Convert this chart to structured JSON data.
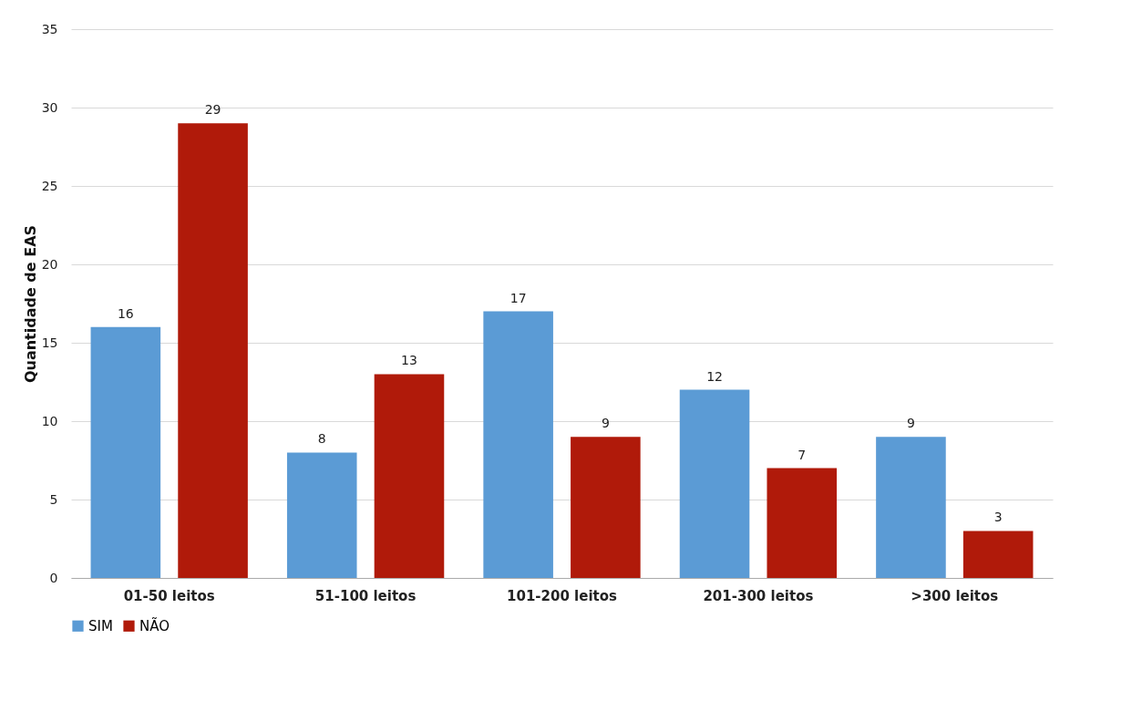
{
  "chart_data": {
    "type": "bar",
    "ylabel": "Quantidade de EAS",
    "categories": [
      "01-50 leitos",
      "51-100 leitos",
      "101-200 leitos",
      "201-300 leitos",
      ">300 leitos"
    ],
    "series": [
      {
        "name": "SIM",
        "color": "#5b9bd5",
        "values": [
          16,
          8,
          17,
          12,
          9
        ]
      },
      {
        "name": "NÃO",
        "color": "#b01a0a",
        "values": [
          29,
          13,
          9,
          7,
          3
        ]
      }
    ],
    "ylim": [
      0,
      35
    ],
    "yticks": [
      0,
      5,
      10,
      15,
      20,
      25,
      30,
      35
    ],
    "grid": "y",
    "legend": "bottom",
    "data_labels": true
  }
}
